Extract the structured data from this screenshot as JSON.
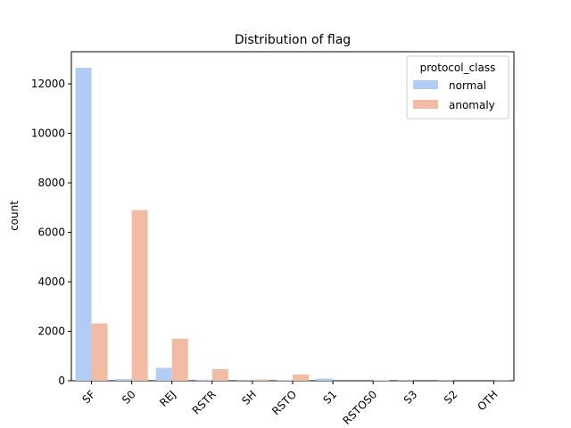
{
  "chart_data": {
    "type": "bar",
    "title": "Distribution of flag",
    "xlabel": "",
    "ylabel": "count",
    "categories": [
      "SF",
      "S0",
      "REJ",
      "RSTR",
      "SH",
      "RSTO",
      "S1",
      "RSTOS0",
      "S3",
      "S2",
      "OTH"
    ],
    "series": [
      {
        "name": "normal",
        "color": "#b3ccf5",
        "values": [
          12650,
          70,
          520,
          40,
          10,
          30,
          90,
          0,
          10,
          10,
          0
        ]
      },
      {
        "name": "anomaly",
        "color": "#f1bba4",
        "values": [
          2320,
          6900,
          1700,
          470,
          50,
          250,
          0,
          20,
          0,
          0,
          10
        ]
      }
    ],
    "ylim": [
      0,
      13300
    ],
    "yticks": [
      0,
      2000,
      4000,
      6000,
      8000,
      10000,
      12000
    ],
    "legend": {
      "title": "protocol_class",
      "placement": "upper-right"
    },
    "grid": false
  }
}
